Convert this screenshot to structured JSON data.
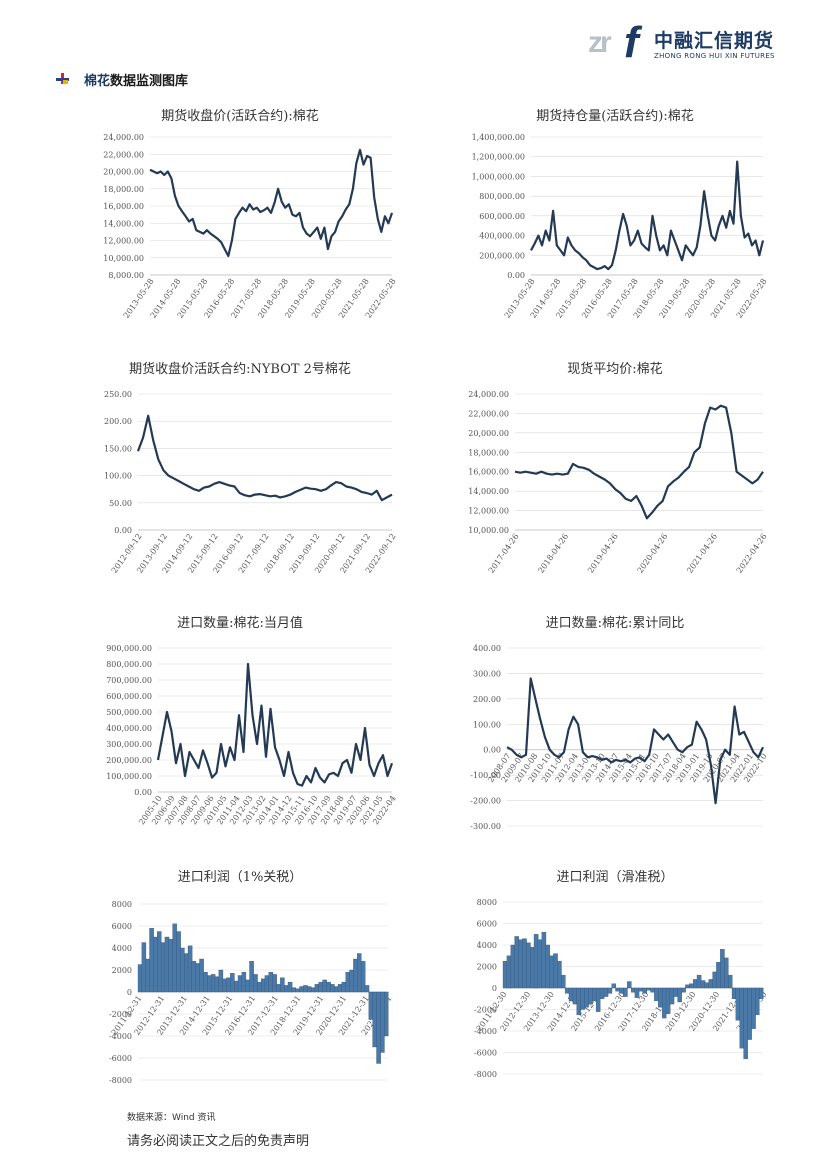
{
  "brand": {
    "zr": "zr",
    "f": "f",
    "cn": "中融汇信期货",
    "en": "ZHONG RONG HUI XIN FUTURES"
  },
  "section": {
    "highlight": "棉花",
    "rest": "数据监测图库"
  },
  "footer": {
    "source": "数据来源：Wind 资讯",
    "disclaimer": "请务必阅读正文之后的免责声明"
  },
  "colors": {
    "line": "#243a54",
    "bar": "#4a79a8",
    "grid": "#d9d9d9",
    "axis": "#bfbfbf"
  },
  "chart_data": [
    {
      "id": "c1",
      "type": "line",
      "title": "期货收盘价(活跃合约):棉花",
      "ylim": [
        8000,
        24000
      ],
      "yticks": [
        "24,000.00",
        "22,000.00",
        "20,000.00",
        "18,000.00",
        "16,000.00",
        "14,000.00",
        "12,000.00",
        "10,000.00",
        "8,000.00"
      ],
      "xticks": [
        "2013-05-28",
        "2014-05-28",
        "2015-05-28",
        "2016-05-28",
        "2017-05-28",
        "2018-05-28",
        "2019-05-28",
        "2020-05-28",
        "2021-05-28",
        "2022-05-28"
      ],
      "values": [
        20200,
        20000,
        19800,
        20000,
        19600,
        20000,
        19200,
        17200,
        16000,
        15400,
        14800,
        14200,
        14500,
        13200,
        13000,
        12800,
        13200,
        12800,
        12500,
        12200,
        11800,
        11000,
        10200,
        12000,
        14500,
        15200,
        15800,
        15400,
        16200,
        15600,
        15800,
        15300,
        15500,
        15800,
        15200,
        16400,
        18000,
        16500,
        15800,
        16200,
        15000,
        14800,
        15200,
        13500,
        12800,
        12500,
        13000,
        13500,
        12200,
        13500,
        11000,
        12500,
        13000,
        14200,
        14800,
        15600,
        16200,
        18000,
        21000,
        22500,
        20800,
        21800,
        21600,
        17000,
        14500,
        13000,
        14800,
        14000,
        15200
      ]
    },
    {
      "id": "c2",
      "type": "line",
      "title": "期货持仓量(活跃合约):棉花",
      "ylim": [
        0,
        1400000
      ],
      "yticks": [
        "1,400,000.00",
        "1,200,000.00",
        "1,000,000.00",
        "800,000.00",
        "600,000.00",
        "400,000.00",
        "200,000.00",
        "0.00"
      ],
      "xticks": [
        "2013-05-28",
        "2014-05-28",
        "2015-05-28",
        "2016-05-28",
        "2017-05-28",
        "2018-05-28",
        "2019-05-28",
        "2020-05-28",
        "2021-05-28",
        "2022-05-28"
      ],
      "values": [
        250000,
        320000,
        400000,
        300000,
        450000,
        350000,
        650000,
        300000,
        250000,
        200000,
        380000,
        300000,
        250000,
        220000,
        180000,
        150000,
        100000,
        80000,
        60000,
        70000,
        90000,
        60000,
        100000,
        250000,
        450000,
        620000,
        500000,
        300000,
        350000,
        450000,
        320000,
        280000,
        250000,
        600000,
        400000,
        250000,
        300000,
        200000,
        450000,
        350000,
        250000,
        150000,
        300000,
        250000,
        200000,
        280000,
        500000,
        850000,
        600000,
        400000,
        350000,
        500000,
        600000,
        480000,
        650000,
        520000,
        1150000,
        600000,
        380000,
        420000,
        300000,
        350000,
        200000,
        350000
      ]
    },
    {
      "id": "c3",
      "type": "line",
      "title": "期货收盘价活跃合约:NYBOT 2号棉花",
      "ylim": [
        0,
        250
      ],
      "yticks": [
        "250.00",
        "200.00",
        "150.00",
        "100.00",
        "50.00",
        "0.00"
      ],
      "xticks": [
        "2012-09-12",
        "2013-09-12",
        "2014-09-12",
        "2015-09-12",
        "2016-09-12",
        "2017-09-12",
        "2018-09-12",
        "2019-09-12",
        "2020-09-12",
        "2021-09-12",
        "2022-09-12"
      ],
      "values": [
        145,
        170,
        210,
        165,
        130,
        110,
        100,
        95,
        90,
        85,
        80,
        75,
        72,
        78,
        80,
        85,
        88,
        85,
        82,
        80,
        68,
        64,
        62,
        65,
        66,
        64,
        62,
        63,
        60,
        62,
        65,
        70,
        74,
        78,
        76,
        75,
        72,
        75,
        82,
        88,
        86,
        80,
        78,
        75,
        70,
        68,
        65,
        72,
        55,
        60,
        65
      ]
    },
    {
      "id": "c4",
      "type": "line",
      "title": "现货平均价:棉花",
      "ylim": [
        10000,
        24000
      ],
      "yticks": [
        "24,000.00",
        "22,000.00",
        "20,000.00",
        "18,000.00",
        "16,000.00",
        "14,000.00",
        "12,000.00",
        "10,000.00"
      ],
      "xticks": [
        "2017-04-26",
        "2018-04-26",
        "2019-04-26",
        "2020-04-26",
        "2021-04-26",
        "2022-04-26"
      ],
      "values": [
        16000,
        15900,
        16000,
        15900,
        15800,
        16000,
        15800,
        15700,
        15800,
        15700,
        15800,
        16800,
        16500,
        16400,
        16200,
        15800,
        15500,
        15200,
        14800,
        14200,
        13800,
        13200,
        13000,
        13500,
        12500,
        11200,
        11800,
        12500,
        13000,
        14500,
        15000,
        15400,
        16000,
        16500,
        18000,
        18500,
        21000,
        22600,
        22400,
        22800,
        22600,
        20000,
        16000,
        15600,
        15200,
        14800,
        15200,
        16000
      ]
    },
    {
      "id": "c5",
      "type": "line",
      "title": "进口数量:棉花:当月值",
      "ylim": [
        0,
        900000
      ],
      "yticks": [
        "900,000.00",
        "800,000.00",
        "700,000.00",
        "600,000.00",
        "500,000.00",
        "400,000.00",
        "300,000.00",
        "200,000.00",
        "100,000.00",
        "0.00"
      ],
      "xticks": [
        "2005-10",
        "2006-09",
        "2007-08",
        "2008-07",
        "2009-06",
        "2010-05",
        "2011-04",
        "2012-03",
        "2013-02",
        "2014-01",
        "2014-12",
        "2015-11",
        "2016-10",
        "2017-09",
        "2018-08",
        "2019-07",
        "2020-06",
        "2021-05",
        "2022-04"
      ],
      "values": [
        200000,
        350000,
        500000,
        380000,
        180000,
        300000,
        100000,
        250000,
        200000,
        150000,
        260000,
        180000,
        90000,
        120000,
        300000,
        160000,
        280000,
        200000,
        480000,
        250000,
        800000,
        480000,
        300000,
        540000,
        220000,
        520000,
        280000,
        200000,
        100000,
        250000,
        120000,
        50000,
        40000,
        100000,
        60000,
        150000,
        90000,
        60000,
        110000,
        120000,
        100000,
        180000,
        200000,
        120000,
        300000,
        200000,
        400000,
        170000,
        100000,
        180000,
        230000,
        100000,
        180000
      ]
    },
    {
      "id": "c6",
      "type": "line",
      "title": "进口数量:棉花:累计同比",
      "ylim": [
        -300,
        400
      ],
      "yticks": [
        "400.00",
        "300.00",
        "200.00",
        "100.00",
        "0.00",
        "-100.00",
        "-200.00",
        "-300.00"
      ],
      "xticks": [
        "2008-07",
        "2009-07",
        "2010-08",
        "2010-10",
        "2011-07",
        "2012-04",
        "2013-01",
        "2013-10",
        "2014-07",
        "2015-04",
        "2015-01",
        "2016-10",
        "2017-07",
        "2018-04",
        "2019-01",
        "2019-10",
        "2020-07",
        "2021-04",
        "2022-01",
        "2022-10"
      ],
      "values": [
        10,
        0,
        -20,
        -30,
        -20,
        280,
        200,
        120,
        50,
        0,
        -20,
        -30,
        -10,
        80,
        130,
        100,
        -10,
        -30,
        -25,
        -30,
        -40,
        -35,
        -50,
        -40,
        -45,
        -40,
        -50,
        -35,
        -30,
        -45,
        -20,
        80,
        60,
        40,
        60,
        30,
        0,
        -10,
        10,
        20,
        110,
        80,
        40,
        -60,
        -210,
        -40,
        0,
        -20,
        170,
        60,
        70,
        30,
        -10,
        -30,
        10
      ]
    },
    {
      "id": "c7",
      "type": "bar",
      "title": "进口利润（1%关税）",
      "ylim": [
        -8000,
        8000
      ],
      "yticks": [
        "8000",
        "6000",
        "4000",
        "2000",
        "0",
        "-2000",
        "-4000",
        "-6000",
        "-8000"
      ],
      "xticks": [
        "2011-12-31",
        "2012-12-31",
        "2013-12-31",
        "2014-12-31",
        "2015-12-31",
        "2016-12-31",
        "2017-12-31",
        "2018-12-31",
        "2019-12-31",
        "2020-12-31",
        "2021-12-31",
        "2022-12-31"
      ],
      "values": [
        2500,
        4500,
        3000,
        5800,
        5000,
        5500,
        4500,
        5000,
        4800,
        6200,
        5500,
        4000,
        3500,
        4200,
        2800,
        2600,
        3000,
        1800,
        1500,
        1600,
        1400,
        2000,
        1200,
        1300,
        1700,
        1000,
        1500,
        1800,
        1100,
        2800,
        1600,
        900,
        1200,
        1500,
        1800,
        1600,
        700,
        1300,
        600,
        900,
        400,
        300,
        500,
        600,
        500,
        400,
        700,
        900,
        1100,
        900,
        700,
        500,
        700,
        900,
        1800,
        2000,
        3000,
        3500,
        2800,
        600,
        -2500,
        -5000,
        -6500,
        -5500,
        -4000
      ]
    },
    {
      "id": "c8",
      "type": "bar",
      "title": "进口利润（滑准税）",
      "ylim": [
        -8000,
        8000
      ],
      "yticks": [
        "8000",
        "6000",
        "4000",
        "2000",
        "0",
        "-2000",
        "-4000",
        "-6000",
        "-8000"
      ],
      "xticks": [
        "2011-12-30",
        "2012-12-30",
        "2013-12-30",
        "2014-12-30",
        "2015-12-30",
        "2016-12-30",
        "2017-12-30",
        "2018-12-30",
        "2019-12-30",
        "2020-12-30",
        "2021-12-30",
        "2022-12-30"
      ],
      "values": [
        2500,
        3000,
        4000,
        4800,
        4500,
        4600,
        4200,
        3800,
        5000,
        4500,
        5200,
        4000,
        3000,
        3200,
        2500,
        1200,
        -500,
        -1200,
        -1500,
        -2500,
        -2000,
        -1800,
        -1500,
        -1200,
        -2200,
        -1000,
        -800,
        -500,
        400,
        -300,
        -500,
        -800,
        600,
        -400,
        -900,
        -300,
        -500,
        -200,
        -400,
        -1200,
        -1800,
        -2800,
        -2400,
        -1500,
        -800,
        -1300,
        -400,
        300,
        400,
        800,
        1200,
        700,
        500,
        800,
        1500,
        2400,
        3600,
        2800,
        1200,
        -1000,
        -3000,
        -5600,
        -6600,
        -4800,
        -3800,
        -2500,
        -1000
      ]
    }
  ]
}
